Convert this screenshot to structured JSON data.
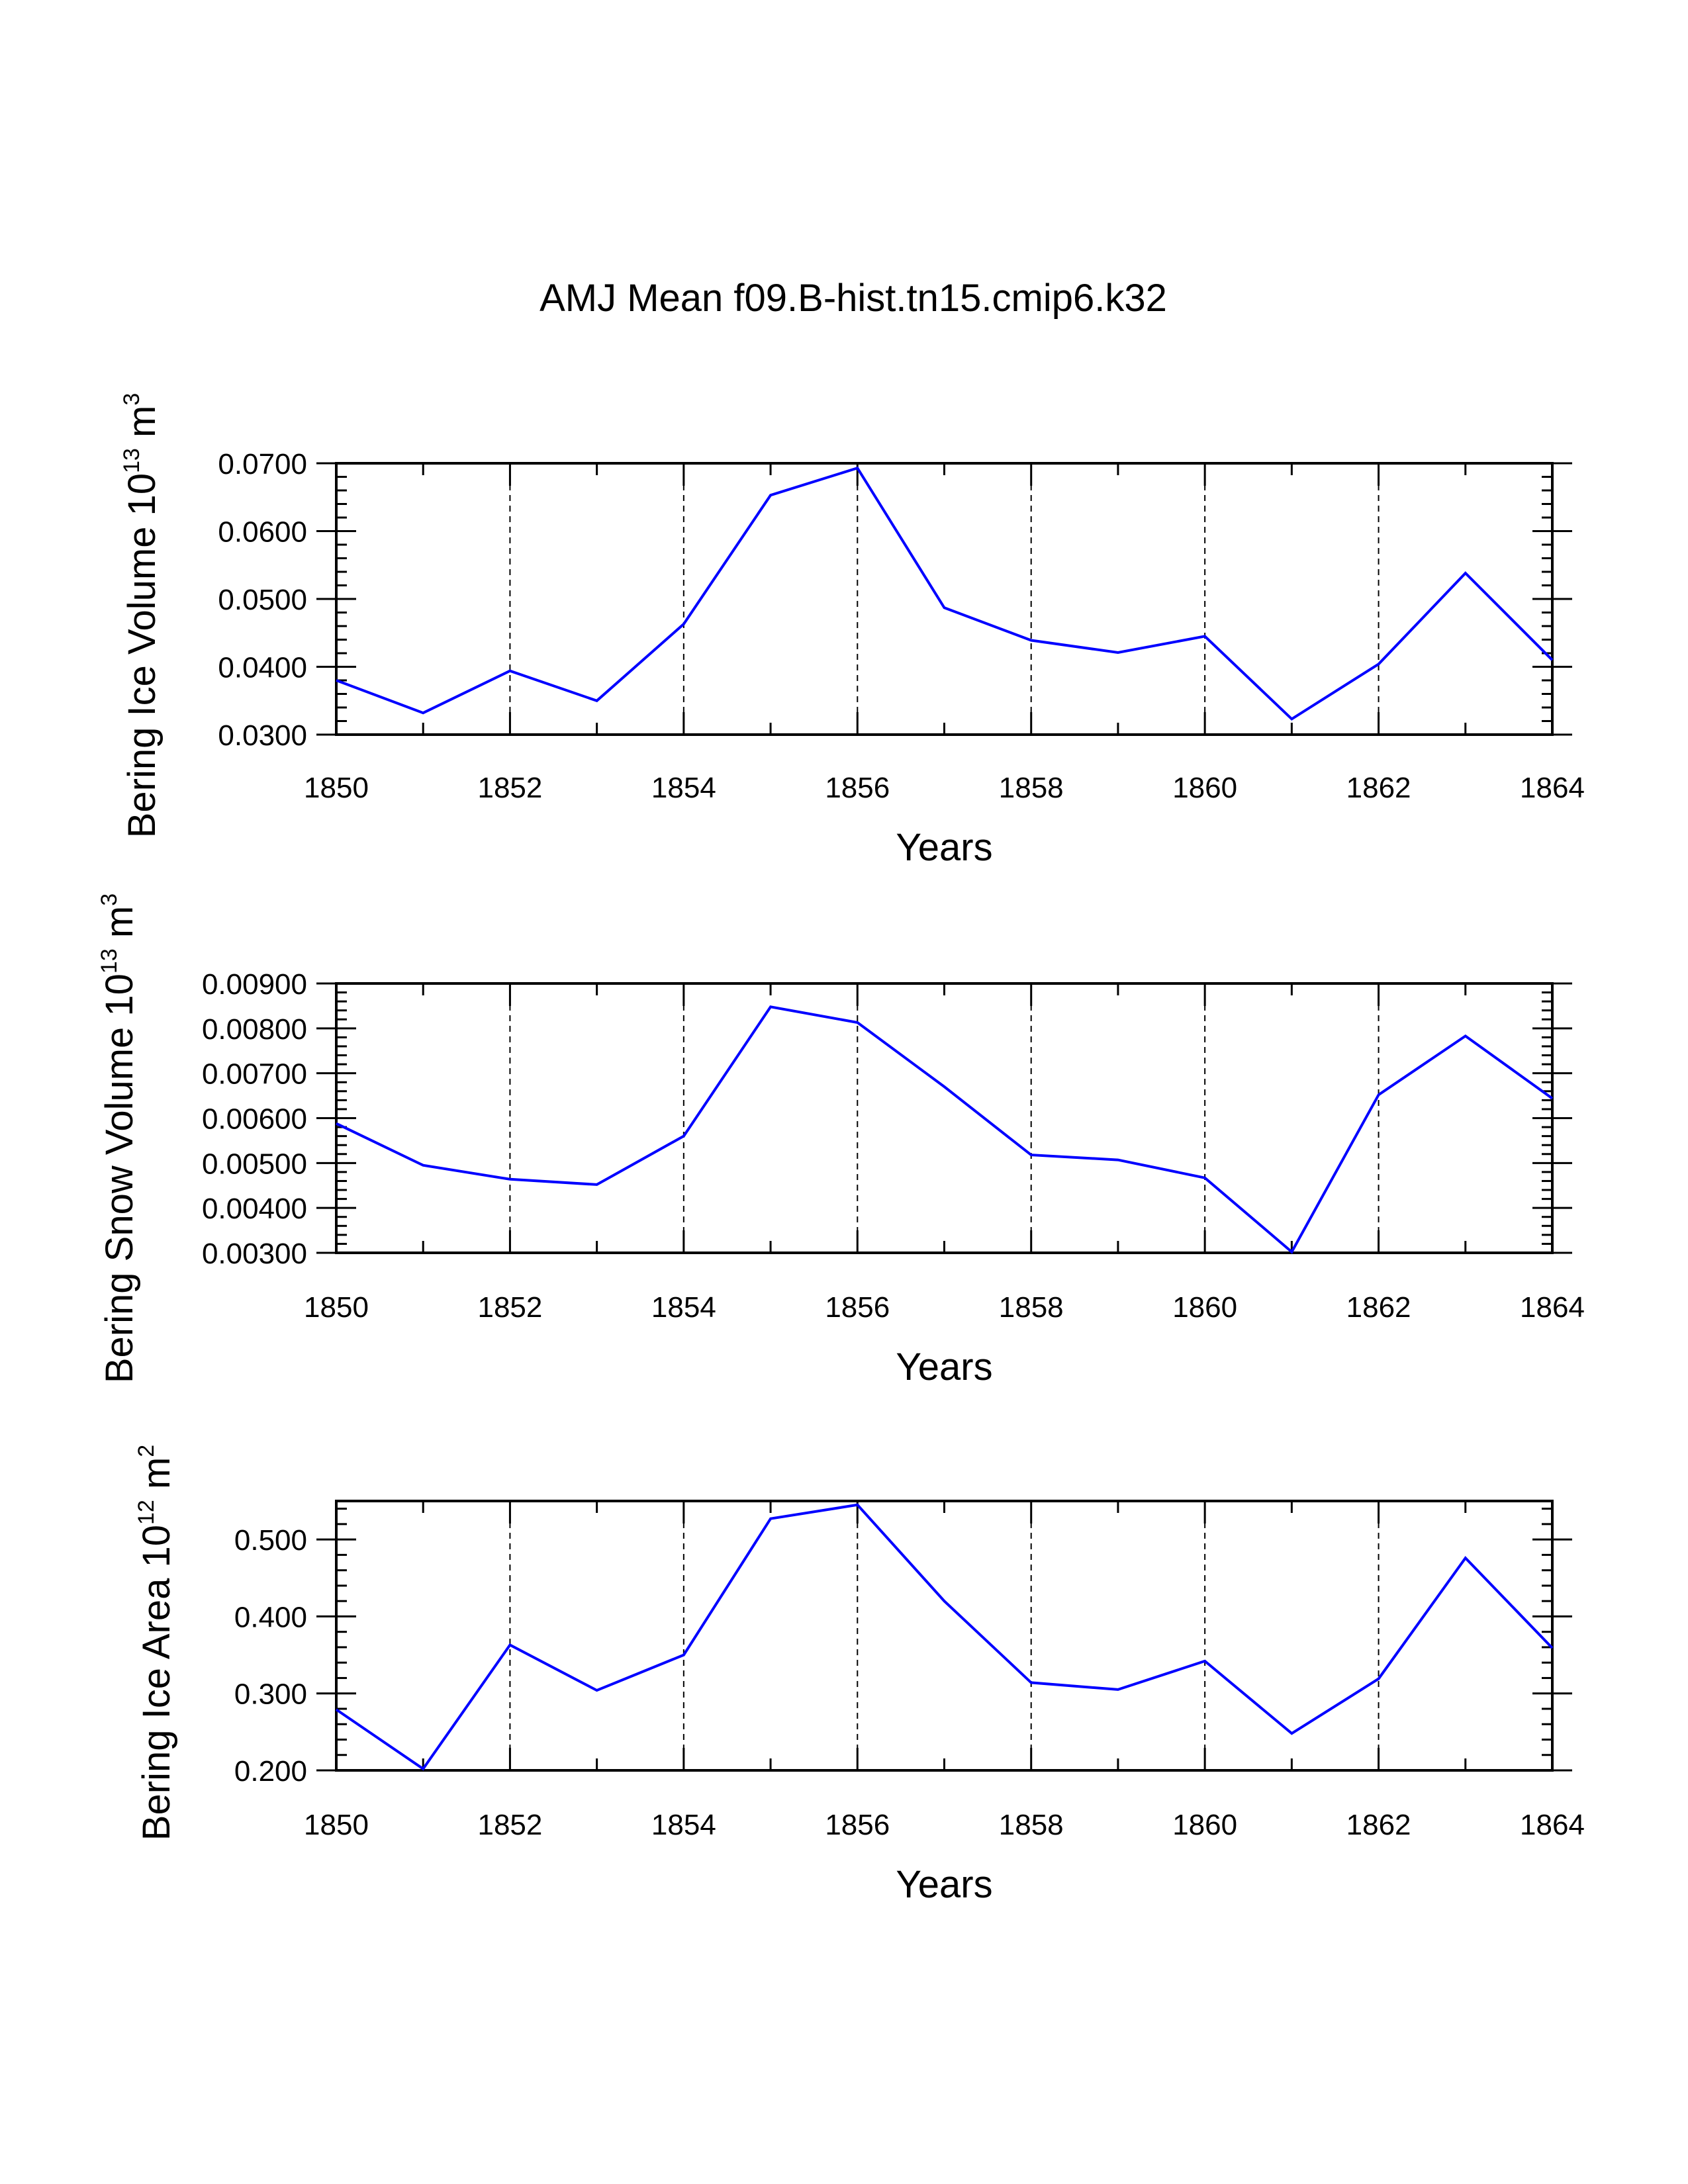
{
  "title": "AMJ Mean f09.B-hist.tn15.cmip6.k32",
  "chart_data": [
    {
      "type": "line",
      "title": "",
      "xlabel": "Years",
      "ylabel": {
        "main": "Bering Ice Volume 10",
        "exp": "13",
        "unit": " m",
        "unit_exp": "3"
      },
      "x": [
        1850,
        1851,
        1852,
        1853,
        1854,
        1855,
        1856,
        1857,
        1858,
        1859,
        1860,
        1861,
        1862,
        1863,
        1864
      ],
      "xlim": [
        1850,
        1864
      ],
      "xticks": [
        "1850",
        "1852",
        "1854",
        "1856",
        "1858",
        "1860",
        "1862",
        "1864"
      ],
      "ylim": [
        0.03,
        0.07
      ],
      "yticks": [
        "0.0300",
        "0.0400",
        "0.0500",
        "0.0600",
        "0.0700"
      ],
      "grid": "vertical dashed at major x ticks",
      "series": [
        {
          "name": "Bering Ice Volume",
          "color": "#0000ff",
          "values": [
            0.038,
            0.0332,
            0.0394,
            0.035,
            0.0463,
            0.0653,
            0.0693,
            0.0487,
            0.0439,
            0.0421,
            0.0445,
            0.0323,
            0.0404,
            0.0538,
            0.041
          ]
        }
      ]
    },
    {
      "type": "line",
      "title": "",
      "xlabel": "Years",
      "ylabel": {
        "main": "Bering Snow Volume 10",
        "exp": "13",
        "unit": " m",
        "unit_exp": "3"
      },
      "x": [
        1850,
        1851,
        1852,
        1853,
        1854,
        1855,
        1856,
        1857,
        1858,
        1859,
        1860,
        1861,
        1862,
        1863,
        1864
      ],
      "xlim": [
        1850,
        1864
      ],
      "xticks": [
        "1850",
        "1852",
        "1854",
        "1856",
        "1858",
        "1860",
        "1862",
        "1864"
      ],
      "ylim": [
        0.003,
        0.009
      ],
      "yticks": [
        "0.00300",
        "0.00400",
        "0.00500",
        "0.00600",
        "0.00700",
        "0.00800",
        "0.00900"
      ],
      "grid": "vertical dashed at major x ticks",
      "series": [
        {
          "name": "Bering Snow Volume",
          "color": "#0000ff",
          "values": [
            0.00588,
            0.00495,
            0.00464,
            0.00452,
            0.0056,
            0.00848,
            0.00813,
            0.0067,
            0.00518,
            0.00507,
            0.00467,
            0.00302,
            0.00652,
            0.00783,
            0.00644
          ]
        }
      ]
    },
    {
      "type": "line",
      "title": "",
      "xlabel": "Years",
      "ylabel": {
        "main": "Bering Ice Area 10",
        "exp": "12",
        "unit": " m",
        "unit_exp": "2"
      },
      "x": [
        1850,
        1851,
        1852,
        1853,
        1854,
        1855,
        1856,
        1857,
        1858,
        1859,
        1860,
        1861,
        1862,
        1863,
        1864
      ],
      "xlim": [
        1850,
        1864
      ],
      "xticks": [
        "1850",
        "1852",
        "1854",
        "1856",
        "1858",
        "1860",
        "1862",
        "1864"
      ],
      "ylim": [
        0.2,
        0.55
      ],
      "yticks": [
        "0.200",
        "0.300",
        "0.400",
        "0.500"
      ],
      "grid": "vertical dashed at major x ticks",
      "series": [
        {
          "name": "Bering Ice Area",
          "color": "#0000ff",
          "values": [
            0.279,
            0.202,
            0.363,
            0.304,
            0.35,
            0.527,
            0.545,
            0.42,
            0.314,
            0.305,
            0.342,
            0.248,
            0.319,
            0.476,
            0.359
          ]
        }
      ]
    }
  ]
}
